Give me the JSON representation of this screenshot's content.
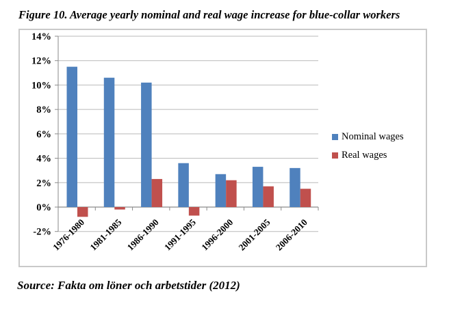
{
  "figure": {
    "title": "Figure 10. Average yearly nominal and real wage increase for blue-collar workers",
    "source": "Source: Fakta om löner och arbetstider (2012)"
  },
  "chart_data": {
    "type": "bar",
    "title": "Figure 10. Average yearly nominal and real wage increase for blue-collar workers",
    "categories": [
      "1976-1980",
      "1981-1985",
      "1986-1990",
      "1991-1995",
      "1996-2000",
      "2001-2005",
      "2006-2010"
    ],
    "series": [
      {
        "name": "Nominal wages",
        "color": "#4F81BD",
        "values": [
          11.5,
          10.6,
          10.2,
          3.6,
          2.7,
          3.3,
          3.2
        ]
      },
      {
        "name": "Real wages",
        "color": "#C0504D",
        "values": [
          -0.8,
          -0.2,
          2.3,
          -0.7,
          2.2,
          1.7,
          1.5
        ]
      }
    ],
    "y_ticks": [
      14,
      12,
      10,
      8,
      6,
      4,
      2,
      0,
      -2
    ],
    "y_tick_labels": [
      "14%",
      "12%",
      "10%",
      "8%",
      "6%",
      "4%",
      "2%",
      "0%",
      "-2%"
    ],
    "ylim": [
      -2,
      14
    ],
    "xlabel": "",
    "ylabel": "",
    "grid": true,
    "legend_position": "right",
    "colors": {
      "gridline": "#b9b9b9",
      "axis": "#8a8a8a",
      "border": "#c9c9c9",
      "text": "#000000"
    }
  }
}
